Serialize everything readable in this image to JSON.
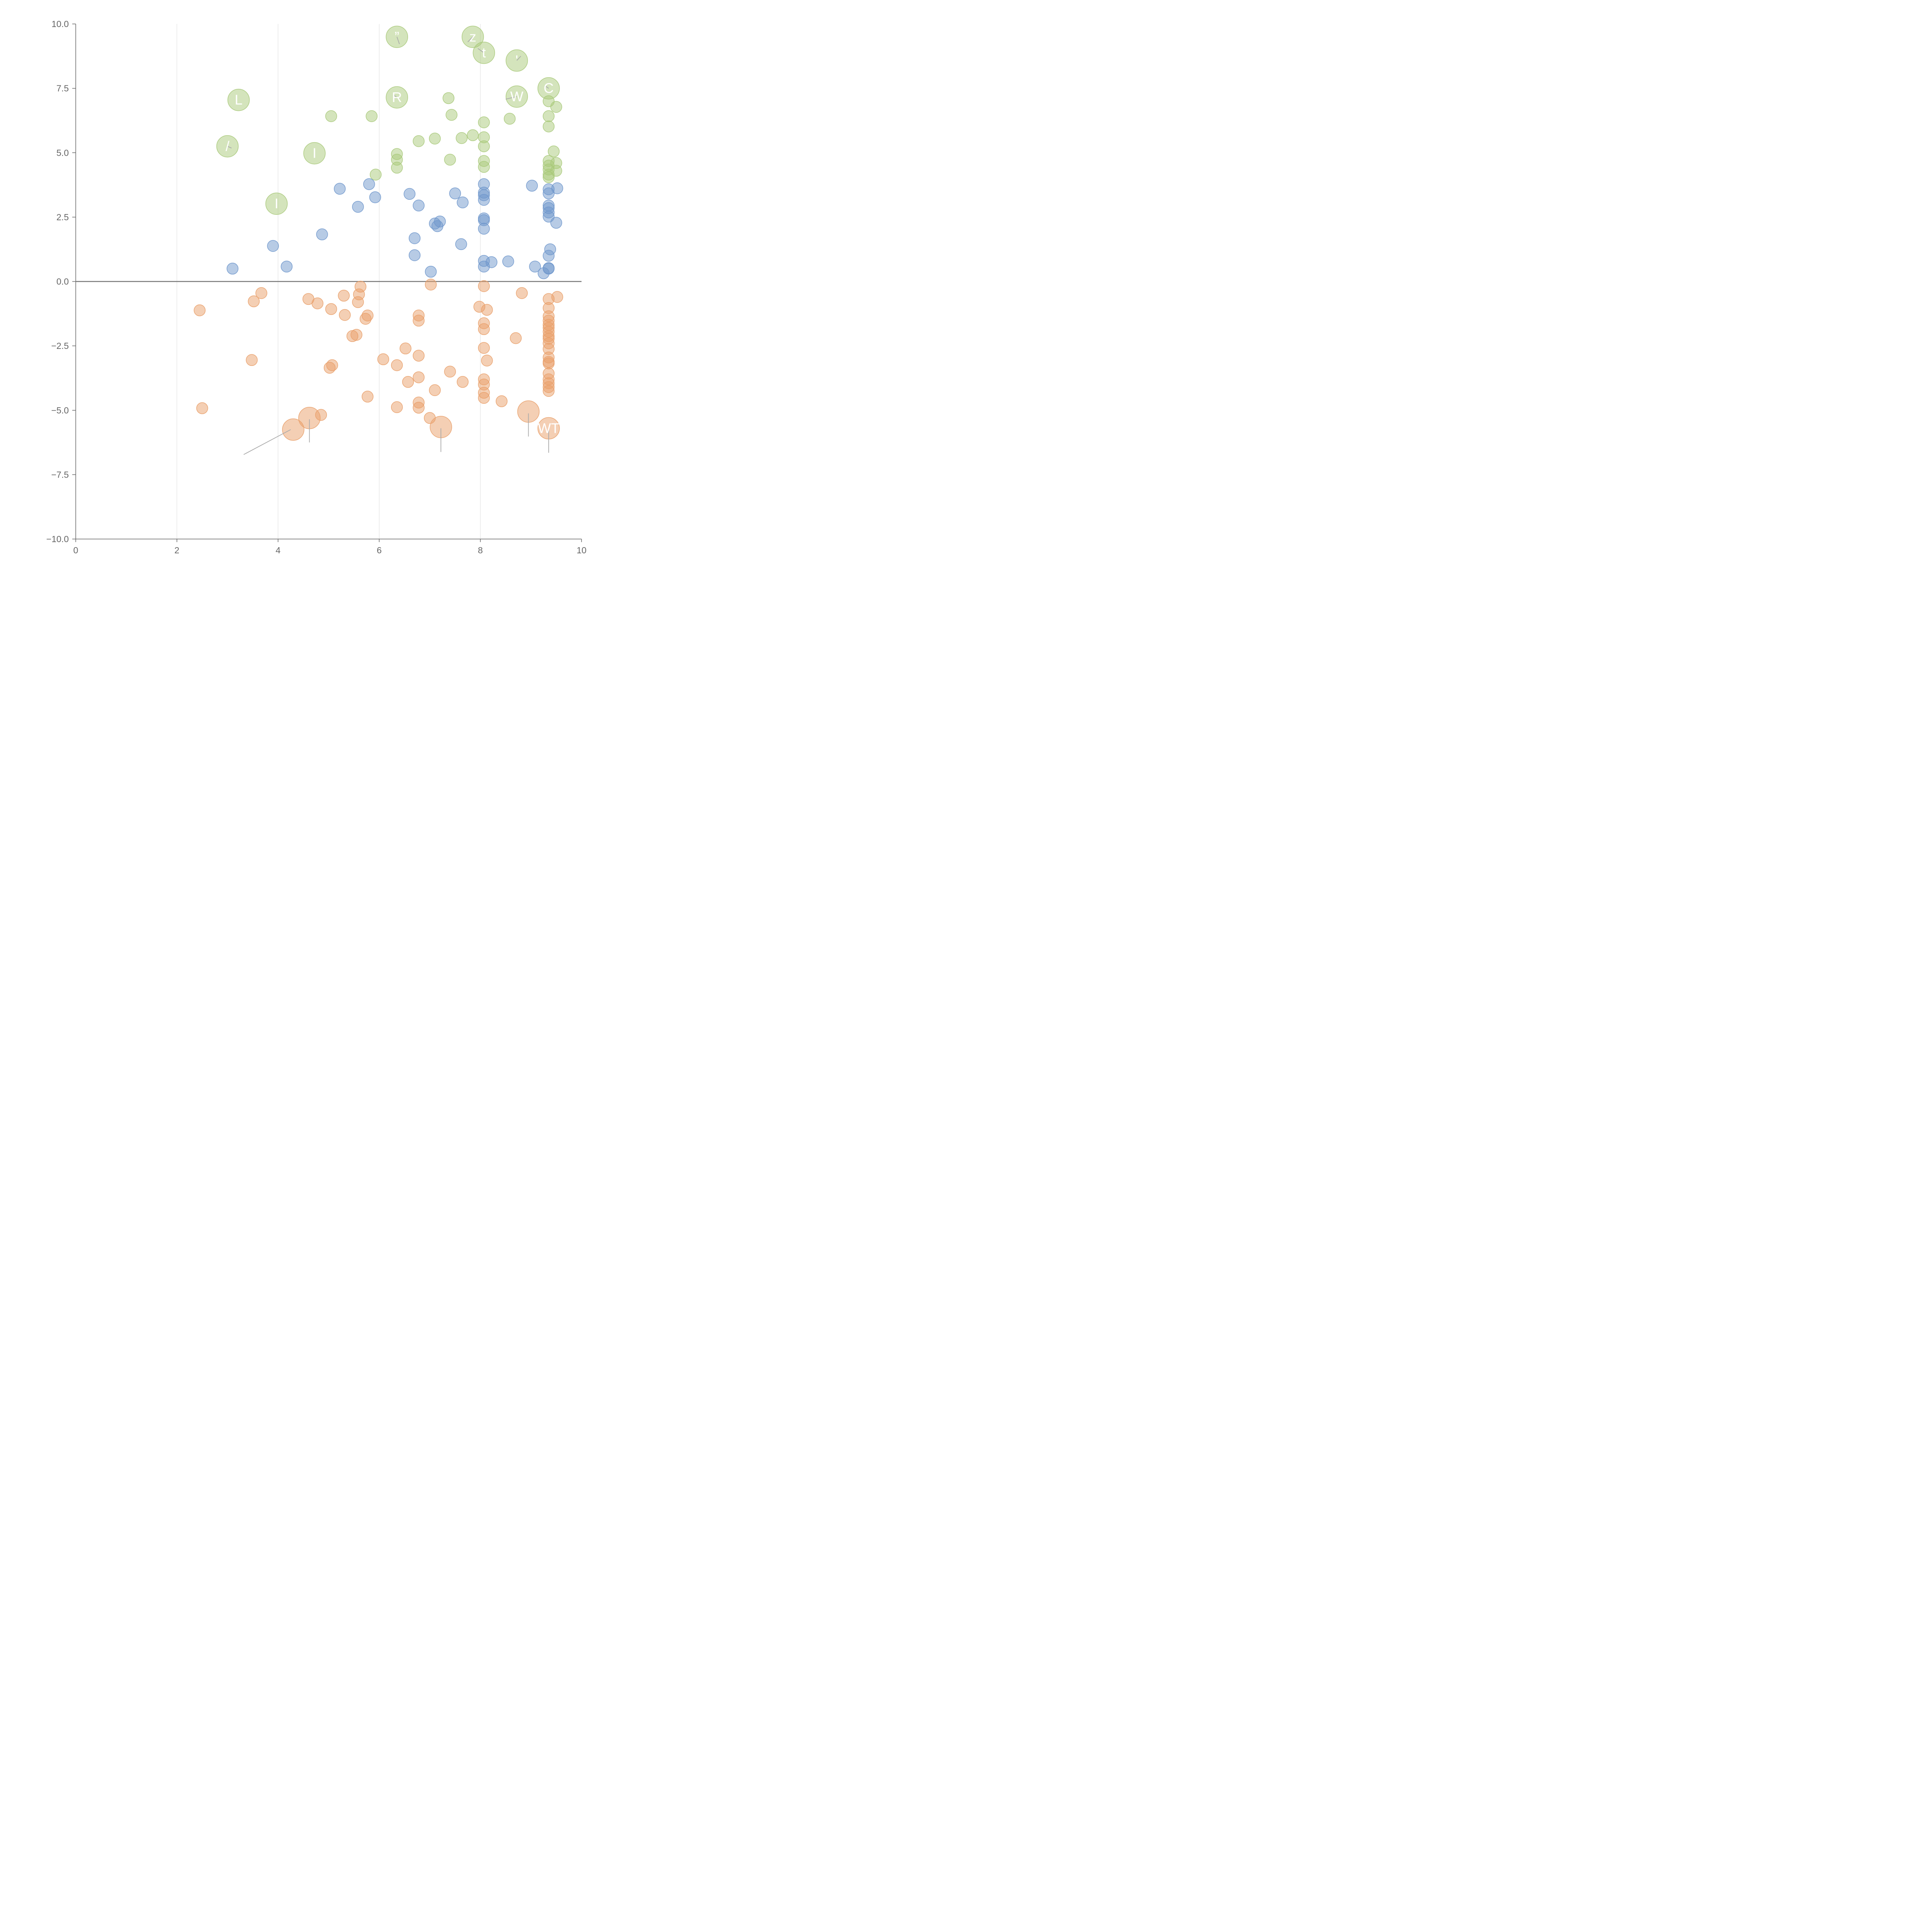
{
  "chart_data": {
    "type": "scatter",
    "title": "",
    "xlabel": "",
    "ylabel": "",
    "xlim": [
      0,
      10
    ],
    "ylim": [
      -10,
      10
    ],
    "x_ticks": [
      "0",
      "2",
      "4",
      "6",
      "8",
      "10"
    ],
    "y_ticks": [
      "10.0",
      "7.5",
      "5.0",
      "2.5",
      "0.0",
      "−2.5",
      "−5.0",
      "−7.5",
      "−10.0"
    ],
    "x_tick_values": [
      0,
      2,
      4,
      6,
      8,
      10
    ],
    "y_tick_values": [
      10,
      7.5,
      5,
      2.5,
      0,
      -2.5,
      -5,
      -7.5,
      -10
    ],
    "vertical_gridlines_at": [
      2,
      4,
      6,
      8
    ],
    "zero_line": true,
    "colors": {
      "green": "#a9c97a",
      "blue": "#6f97cc",
      "orange": "#e9a06a",
      "axis": "#666666",
      "grid": "#dddddd",
      "zero_line": "#777777",
      "leader": "#aaaaaa",
      "label": "#ffffff"
    },
    "series": [
      {
        "name": "green",
        "color_key": "green",
        "points": [
          [
            5.05,
            6.42
          ],
          [
            5.85,
            6.42
          ],
          [
            5.93,
            4.15
          ],
          [
            6.35,
            4.95
          ],
          [
            6.35,
            4.73
          ],
          [
            6.35,
            4.42
          ],
          [
            6.78,
            5.45
          ],
          [
            7.1,
            5.55
          ],
          [
            7.37,
            7.12
          ],
          [
            7.43,
            6.47
          ],
          [
            7.4,
            4.73
          ],
          [
            7.63,
            5.57
          ],
          [
            7.85,
            5.68
          ],
          [
            8.07,
            6.18
          ],
          [
            8.07,
            5.6
          ],
          [
            8.07,
            5.25
          ],
          [
            8.07,
            4.68
          ],
          [
            8.07,
            4.45
          ],
          [
            8.58,
            6.32
          ],
          [
            9.35,
            7.0
          ],
          [
            9.35,
            6.42
          ],
          [
            9.35,
            6.02
          ],
          [
            9.5,
            6.78
          ],
          [
            9.45,
            5.05
          ],
          [
            9.35,
            4.68
          ],
          [
            9.35,
            4.5
          ],
          [
            9.5,
            4.6
          ],
          [
            9.35,
            4.35
          ],
          [
            9.35,
            4.15
          ],
          [
            9.5,
            4.3
          ],
          [
            9.35,
            4.05
          ]
        ]
      },
      {
        "name": "blue",
        "color_key": "blue",
        "points": [
          [
            3.1,
            0.5
          ],
          [
            3.9,
            1.38
          ],
          [
            4.17,
            0.58
          ],
          [
            4.87,
            1.83
          ],
          [
            5.22,
            3.6
          ],
          [
            5.58,
            2.9
          ],
          [
            5.8,
            3.78
          ],
          [
            5.92,
            3.27
          ],
          [
            6.6,
            3.4
          ],
          [
            6.7,
            1.68
          ],
          [
            6.7,
            1.02
          ],
          [
            6.78,
            2.95
          ],
          [
            7.02,
            0.38
          ],
          [
            7.1,
            2.25
          ],
          [
            7.15,
            2.15
          ],
          [
            7.2,
            2.33
          ],
          [
            7.5,
            3.42
          ],
          [
            7.62,
            1.45
          ],
          [
            7.65,
            3.07
          ],
          [
            8.07,
            3.78
          ],
          [
            8.07,
            3.45
          ],
          [
            8.07,
            3.35
          ],
          [
            8.07,
            3.17
          ],
          [
            8.07,
            2.45
          ],
          [
            8.07,
            2.38
          ],
          [
            8.07,
            2.05
          ],
          [
            8.07,
            0.8
          ],
          [
            8.07,
            0.58
          ],
          [
            8.22,
            0.75
          ],
          [
            8.55,
            0.78
          ],
          [
            9.02,
            3.72
          ],
          [
            9.08,
            0.58
          ],
          [
            9.25,
            0.32
          ],
          [
            9.35,
            3.58
          ],
          [
            9.35,
            3.42
          ],
          [
            9.35,
            2.95
          ],
          [
            9.35,
            2.85
          ],
          [
            9.35,
            2.68
          ],
          [
            9.35,
            2.52
          ],
          [
            9.52,
            3.62
          ],
          [
            9.5,
            2.28
          ],
          [
            9.38,
            1.25
          ],
          [
            9.35,
            1.0
          ],
          [
            9.35,
            0.52
          ],
          [
            9.35,
            0.5
          ]
        ]
      },
      {
        "name": "orange",
        "color_key": "orange",
        "points": [
          [
            2.45,
            -1.12
          ],
          [
            2.5,
            -4.92
          ],
          [
            3.48,
            -3.05
          ],
          [
            3.52,
            -0.77
          ],
          [
            3.67,
            -0.45
          ],
          [
            4.6,
            -0.68
          ],
          [
            4.78,
            -0.85
          ],
          [
            5.05,
            -1.07
          ],
          [
            5.02,
            -3.35
          ],
          [
            5.07,
            -3.25
          ],
          [
            5.3,
            -0.55
          ],
          [
            5.32,
            -1.3
          ],
          [
            5.47,
            -2.12
          ],
          [
            5.55,
            -2.07
          ],
          [
            5.58,
            -0.8
          ],
          [
            5.6,
            -0.5
          ],
          [
            5.63,
            -0.2
          ],
          [
            5.73,
            -1.45
          ],
          [
            5.77,
            -1.32
          ],
          [
            5.77,
            -4.47
          ],
          [
            6.08,
            -3.02
          ],
          [
            6.35,
            -3.25
          ],
          [
            6.35,
            -4.88
          ],
          [
            6.52,
            -2.6
          ],
          [
            6.57,
            -3.9
          ],
          [
            6.78,
            -1.32
          ],
          [
            6.78,
            -1.52
          ],
          [
            6.78,
            -2.88
          ],
          [
            6.78,
            -3.72
          ],
          [
            6.78,
            -4.7
          ],
          [
            6.78,
            -4.9
          ],
          [
            7.0,
            -5.3
          ],
          [
            7.02,
            -0.12
          ],
          [
            7.1,
            -4.22
          ],
          [
            7.4,
            -3.5
          ],
          [
            7.65,
            -3.9
          ],
          [
            7.98,
            -0.98
          ],
          [
            8.07,
            -0.18
          ],
          [
            8.07,
            -1.62
          ],
          [
            8.07,
            -1.85
          ],
          [
            8.07,
            -2.58
          ],
          [
            8.07,
            -3.8
          ],
          [
            8.07,
            -4.0
          ],
          [
            8.07,
            -4.32
          ],
          [
            8.07,
            -4.52
          ],
          [
            8.13,
            -1.1
          ],
          [
            8.13,
            -3.07
          ],
          [
            8.42,
            -4.65
          ],
          [
            8.7,
            -2.2
          ],
          [
            8.82,
            -0.45
          ],
          [
            9.35,
            -0.68
          ],
          [
            9.35,
            -1.03
          ],
          [
            9.35,
            -1.35
          ],
          [
            9.35,
            -1.52
          ],
          [
            9.35,
            -1.68
          ],
          [
            9.35,
            -1.8
          ],
          [
            9.35,
            -1.95
          ],
          [
            9.35,
            -2.12
          ],
          [
            9.35,
            -2.22
          ],
          [
            9.35,
            -2.4
          ],
          [
            9.35,
            -2.62
          ],
          [
            9.35,
            -2.95
          ],
          [
            9.35,
            -3.12
          ],
          [
            9.35,
            -3.18
          ],
          [
            9.35,
            -3.57
          ],
          [
            9.35,
            -3.8
          ],
          [
            9.35,
            -3.95
          ],
          [
            9.35,
            -4.1
          ],
          [
            9.35,
            -4.25
          ],
          [
            9.52,
            -0.6
          ],
          [
            4.85,
            -5.18
          ]
        ]
      }
    ],
    "large_points": [
      {
        "color_key": "green",
        "x": 6.35,
        "y": 9.5,
        "label": "”"
      },
      {
        "color_key": "green",
        "x": 7.85,
        "y": 9.5,
        "label": "z"
      },
      {
        "color_key": "green",
        "x": 8.07,
        "y": 8.88,
        "label": "t"
      },
      {
        "color_key": "green",
        "x": 8.72,
        "y": 8.58,
        "label": "'"
      },
      {
        "color_key": "green",
        "x": 3.22,
        "y": 7.05,
        "label": "L"
      },
      {
        "color_key": "green",
        "x": 6.35,
        "y": 7.15,
        "label": "R"
      },
      {
        "color_key": "green",
        "x": 8.72,
        "y": 7.18,
        "label": "W"
      },
      {
        "color_key": "green",
        "x": 9.35,
        "y": 7.5,
        "label": "C"
      },
      {
        "color_key": "green",
        "x": 3.0,
        "y": 5.25,
        "label": "/"
      },
      {
        "color_key": "green",
        "x": 4.72,
        "y": 4.98,
        "label": "I"
      },
      {
        "color_key": "green",
        "x": 3.97,
        "y": 3.02,
        "label": "I"
      },
      {
        "color_key": "orange",
        "x": 4.3,
        "y": -5.75,
        "label": ""
      },
      {
        "color_key": "orange",
        "x": 4.62,
        "y": -5.3,
        "label": ""
      },
      {
        "color_key": "orange",
        "x": 7.22,
        "y": -5.65,
        "label": ""
      },
      {
        "color_key": "orange",
        "x": 8.95,
        "y": -5.05,
        "label": ""
      },
      {
        "color_key": "orange",
        "x": 9.35,
        "y": -5.7,
        "label": "WT"
      }
    ],
    "leader_lines": [
      {
        "x1": 4.25,
        "y1": -5.75,
        "x2": 3.32,
        "y2": -6.72
      },
      {
        "x1": 4.62,
        "y1": -5.35,
        "x2": 4.62,
        "y2": -6.25
      },
      {
        "x1": 7.22,
        "y1": -5.7,
        "x2": 7.22,
        "y2": -6.62
      },
      {
        "x1": 8.95,
        "y1": -5.12,
        "x2": 8.95,
        "y2": -6.02
      },
      {
        "x1": 9.35,
        "y1": -5.72,
        "x2": 9.35,
        "y2": -6.65
      },
      {
        "x1": 6.35,
        "y1": 9.5,
        "x2": 6.4,
        "y2": 9.22
      },
      {
        "x1": 7.85,
        "y1": 9.5,
        "x2": 7.75,
        "y2": 9.3
      },
      {
        "x1": 8.07,
        "y1": 8.88,
        "x2": 7.95,
        "y2": 9.05
      },
      {
        "x1": 8.72,
        "y1": 8.58,
        "x2": 8.8,
        "y2": 8.75
      },
      {
        "x1": 8.72,
        "y1": 7.18,
        "x2": 8.5,
        "y2": 7.08
      },
      {
        "x1": 9.35,
        "y1": 7.5,
        "x2": 9.28,
        "y2": 7.6
      },
      {
        "x1": 6.35,
        "y1": 7.15,
        "x2": 6.28,
        "y2": 7.25
      },
      {
        "x1": 3.0,
        "y1": 5.25,
        "x2": 3.08,
        "y2": 5.18
      },
      {
        "x1": 4.72,
        "y1": 4.98,
        "x2": 4.72,
        "y2": 5.08
      },
      {
        "x1": 3.97,
        "y1": 3.02,
        "x2": 3.97,
        "y2": 3.12
      }
    ]
  }
}
